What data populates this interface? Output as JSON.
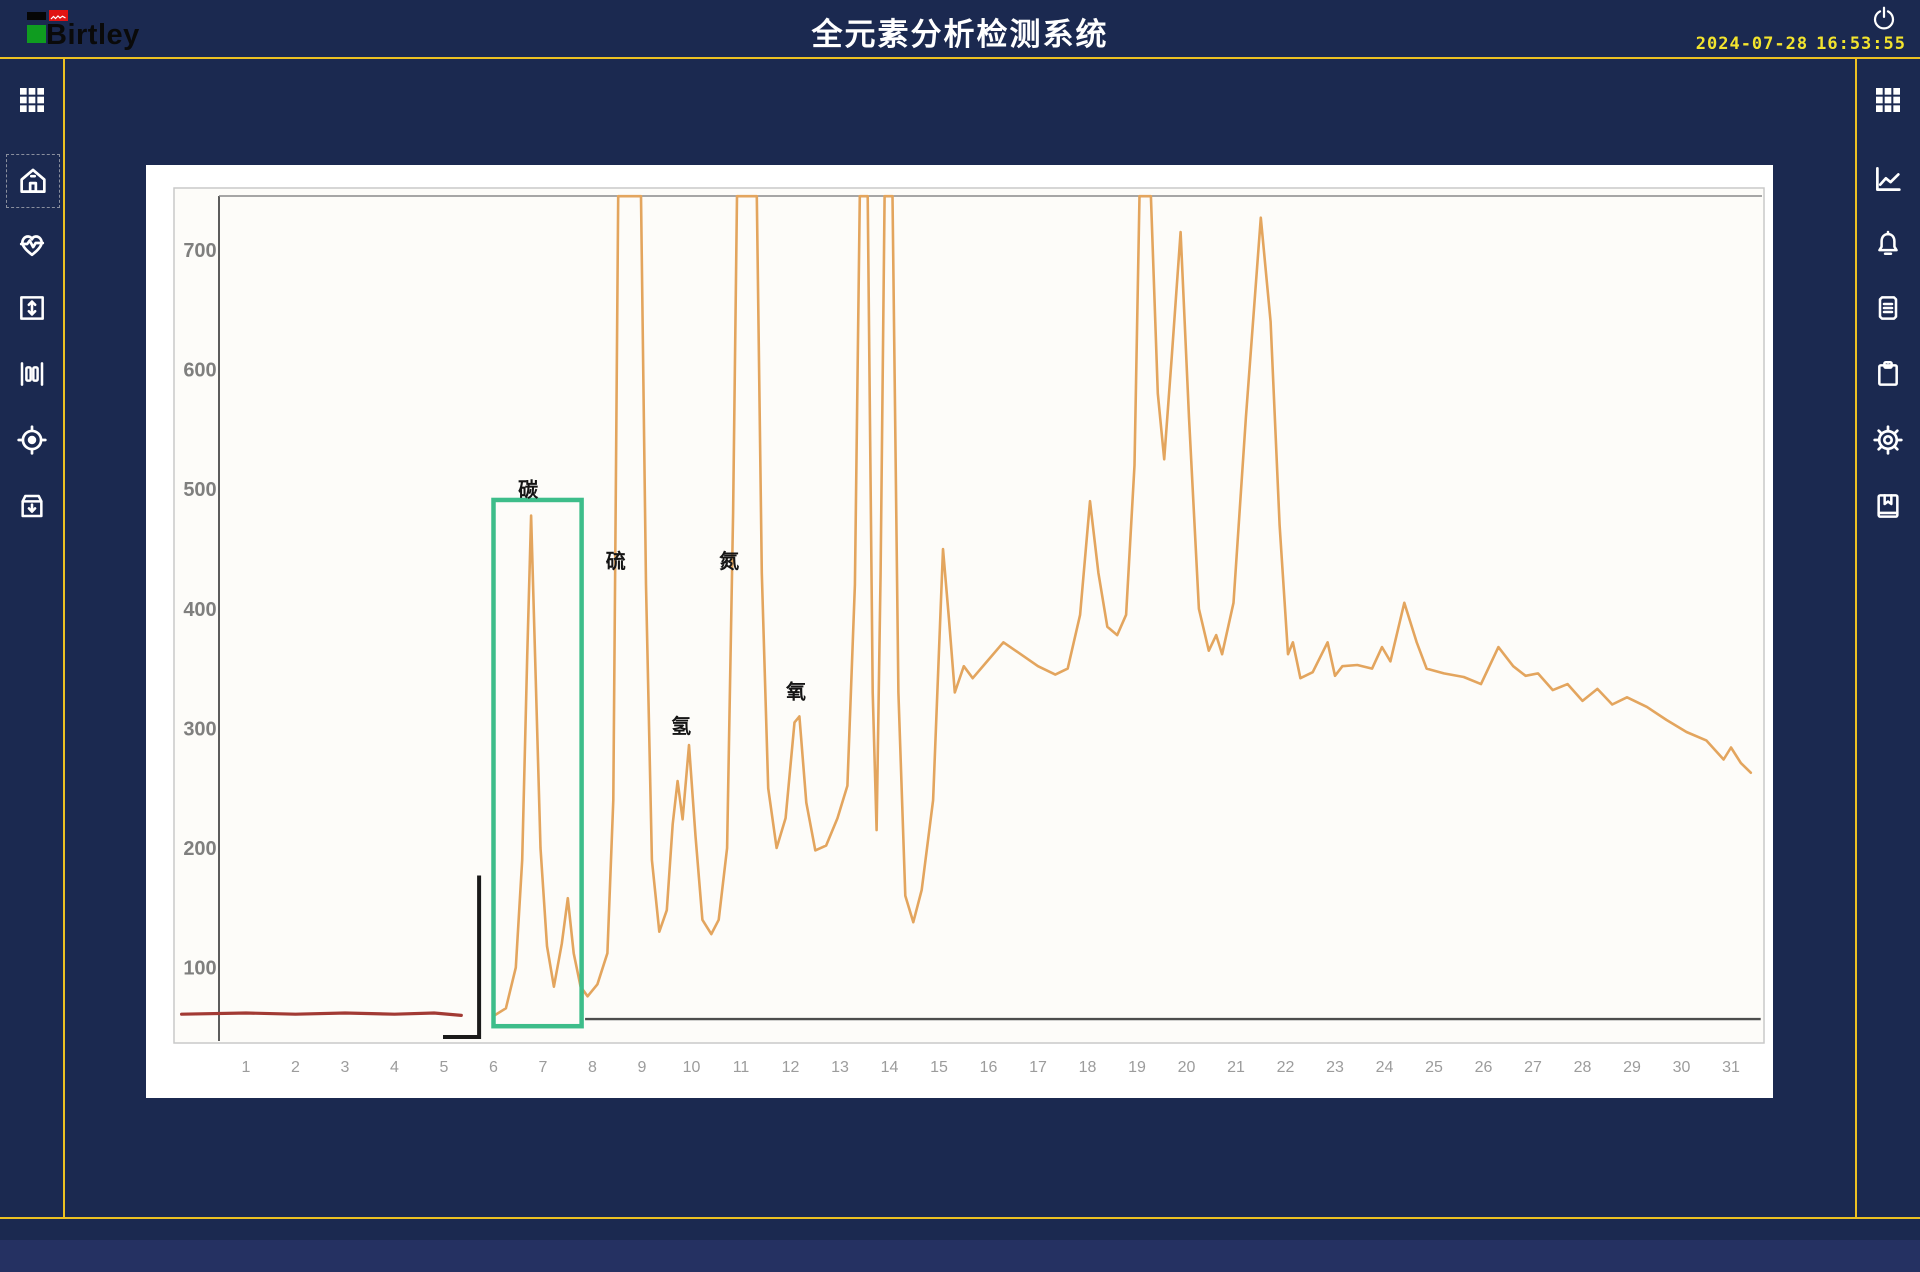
{
  "header": {
    "brand": "Birtley",
    "title": "全元素分析检测系统",
    "date": "2024-07-28",
    "time": "16:53:55",
    "accent_color": "#edc122",
    "clock_color": "#f3e42e",
    "power_icon": "power-icon"
  },
  "left_sidebar": {
    "selected_index": 1,
    "items": [
      {
        "icon": "apps-grid-icon"
      },
      {
        "icon": "home-icon"
      },
      {
        "icon": "heartbeat-monitor-icon"
      },
      {
        "icon": "vertical-range-icon"
      },
      {
        "icon": "column-bars-icon"
      },
      {
        "icon": "target-locate-icon"
      },
      {
        "icon": "archive-download-icon"
      }
    ]
  },
  "right_sidebar": {
    "items": [
      {
        "icon": "apps-grid-icon"
      },
      {
        "icon": "trend-chart-icon"
      },
      {
        "icon": "alarm-bell-icon"
      },
      {
        "icon": "report-document-icon"
      },
      {
        "icon": "clipboard-icon"
      },
      {
        "icon": "settings-gear-icon"
      },
      {
        "icon": "bookmark-book-icon"
      }
    ]
  },
  "chart_data": {
    "type": "line",
    "title": "",
    "xlabel": "",
    "ylabel": "",
    "x_ticks": [
      1,
      2,
      3,
      4,
      5,
      6,
      7,
      8,
      9,
      10,
      11,
      12,
      13,
      14,
      15,
      16,
      17,
      18,
      19,
      20,
      21,
      22,
      23,
      24,
      25,
      26,
      27,
      28,
      29,
      30,
      31
    ],
    "y_ticks": [
      700,
      600,
      500,
      400,
      300,
      200,
      100
    ],
    "xlim": [
      -0.5,
      31.7
    ],
    "ylim": [
      40,
      760
    ],
    "clip_value": 745,
    "grid": false,
    "annotations": [
      {
        "label": "碳",
        "x": 6.7,
        "y": 494
      },
      {
        "label": "硫",
        "x": 8.47,
        "y": 434
      },
      {
        "label": "氢",
        "x": 9.79,
        "y": 296
      },
      {
        "label": "氮",
        "x": 10.76,
        "y": 434
      },
      {
        "label": "氧",
        "x": 12.11,
        "y": 325
      }
    ],
    "highlight_box": {
      "x0": 6.0,
      "x1": 7.78,
      "y0": 51,
      "y1": 491,
      "color": "#3dbd8a"
    },
    "bracket": {
      "x": 5.71,
      "y_top": 177,
      "y_bottom": 42,
      "x_left": 4.98,
      "color": "#1a1a1a"
    },
    "baseline": {
      "x0": 7.85,
      "x1": 31.6,
      "y": 57,
      "color": "#4d4d4d"
    },
    "series": [
      {
        "name": "start-baseline",
        "color": "#a23a34",
        "width": 3.2,
        "points": [
          [
            -0.3,
            61
          ],
          [
            1,
            62
          ],
          [
            2,
            61
          ],
          [
            3,
            62
          ],
          [
            4,
            61
          ],
          [
            4.8,
            62
          ],
          [
            5.35,
            60
          ]
        ]
      },
      {
        "name": "signal",
        "color": "#e3a55e",
        "width": 2.6,
        "points": [
          [
            6.02,
            60
          ],
          [
            6.25,
            66
          ],
          [
            6.45,
            100
          ],
          [
            6.58,
            190
          ],
          [
            6.68,
            360
          ],
          [
            6.76,
            478
          ],
          [
            6.84,
            360
          ],
          [
            6.95,
            200
          ],
          [
            7.08,
            118
          ],
          [
            7.22,
            84
          ],
          [
            7.38,
            120
          ],
          [
            7.5,
            158
          ],
          [
            7.62,
            112
          ],
          [
            7.76,
            84
          ],
          [
            7.9,
            76
          ],
          [
            8.1,
            86
          ],
          [
            8.3,
            112
          ],
          [
            8.42,
            240
          ],
          [
            8.52,
            745
          ],
          [
            8.98,
            745
          ],
          [
            9.08,
            420
          ],
          [
            9.2,
            190
          ],
          [
            9.35,
            130
          ],
          [
            9.5,
            148
          ],
          [
            9.62,
            220
          ],
          [
            9.72,
            256
          ],
          [
            9.82,
            224
          ],
          [
            9.95,
            286
          ],
          [
            10.08,
            210
          ],
          [
            10.22,
            140
          ],
          [
            10.4,
            128
          ],
          [
            10.55,
            140
          ],
          [
            10.72,
            200
          ],
          [
            10.84,
            480
          ],
          [
            10.92,
            745
          ],
          [
            11.32,
            745
          ],
          [
            11.42,
            430
          ],
          [
            11.55,
            250
          ],
          [
            11.72,
            200
          ],
          [
            11.9,
            225
          ],
          [
            12.08,
            305
          ],
          [
            12.18,
            310
          ],
          [
            12.32,
            238
          ],
          [
            12.5,
            198
          ],
          [
            12.72,
            202
          ],
          [
            12.95,
            225
          ],
          [
            13.15,
            252
          ],
          [
            13.3,
            420
          ],
          [
            13.4,
            745
          ],
          [
            13.56,
            745
          ],
          [
            13.66,
            330
          ],
          [
            13.74,
            215
          ],
          [
            13.82,
            430
          ],
          [
            13.9,
            745
          ],
          [
            14.06,
            745
          ],
          [
            14.18,
            330
          ],
          [
            14.32,
            160
          ],
          [
            14.48,
            138
          ],
          [
            14.65,
            165
          ],
          [
            14.88,
            240
          ],
          [
            15.08,
            450
          ],
          [
            15.2,
            392
          ],
          [
            15.32,
            330
          ],
          [
            15.5,
            352
          ],
          [
            15.68,
            342
          ],
          [
            15.95,
            355
          ],
          [
            16.3,
            372
          ],
          [
            16.65,
            362
          ],
          [
            17,
            352
          ],
          [
            17.35,
            345
          ],
          [
            17.6,
            350
          ],
          [
            17.85,
            395
          ],
          [
            18.05,
            490
          ],
          [
            18.22,
            430
          ],
          [
            18.4,
            385
          ],
          [
            18.6,
            378
          ],
          [
            18.78,
            395
          ],
          [
            18.95,
            520
          ],
          [
            19.05,
            745
          ],
          [
            19.28,
            745
          ],
          [
            19.42,
            580
          ],
          [
            19.55,
            525
          ],
          [
            19.7,
            610
          ],
          [
            19.88,
            715
          ],
          [
            20.05,
            560
          ],
          [
            20.25,
            400
          ],
          [
            20.45,
            365
          ],
          [
            20.6,
            378
          ],
          [
            20.72,
            362
          ],
          [
            20.95,
            405
          ],
          [
            21.2,
            560
          ],
          [
            21.5,
            727
          ],
          [
            21.7,
            640
          ],
          [
            21.88,
            470
          ],
          [
            22.05,
            362
          ],
          [
            22.15,
            372
          ],
          [
            22.3,
            342
          ],
          [
            22.55,
            347
          ],
          [
            22.85,
            372
          ],
          [
            23,
            344
          ],
          [
            23.15,
            352
          ],
          [
            23.45,
            353
          ],
          [
            23.75,
            350
          ],
          [
            23.95,
            368
          ],
          [
            24.12,
            356
          ],
          [
            24.4,
            405
          ],
          [
            24.65,
            372
          ],
          [
            24.85,
            350
          ],
          [
            25.2,
            346
          ],
          [
            25.6,
            343
          ],
          [
            25.95,
            337
          ],
          [
            26.3,
            368
          ],
          [
            26.6,
            352
          ],
          [
            26.85,
            344
          ],
          [
            27.1,
            346
          ],
          [
            27.4,
            332
          ],
          [
            27.7,
            337
          ],
          [
            28,
            323
          ],
          [
            28.3,
            333
          ],
          [
            28.6,
            320
          ],
          [
            28.9,
            326
          ],
          [
            29.3,
            318
          ],
          [
            29.7,
            307
          ],
          [
            30.1,
            297
          ],
          [
            30.5,
            290
          ],
          [
            30.85,
            274
          ],
          [
            31,
            284
          ],
          [
            31.2,
            271
          ],
          [
            31.4,
            263
          ]
        ]
      }
    ]
  }
}
